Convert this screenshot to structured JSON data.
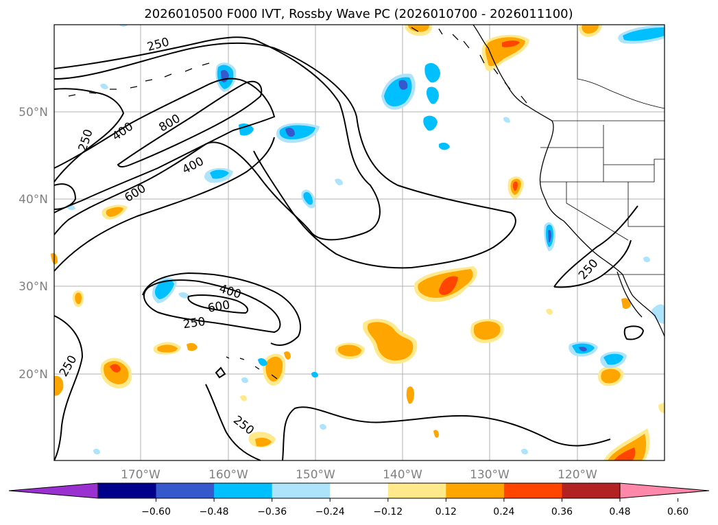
{
  "title": "2026010500 F000 IVT, Rossby Wave PC (2026010700 - 2026011100)",
  "axes": {
    "lat_labels": [
      "50°N",
      "40°N",
      "30°N",
      "20°N"
    ],
    "lon_labels": [
      "170°W",
      "160°W",
      "150°W",
      "140°W",
      "130°W",
      "120°W"
    ]
  },
  "contour_labels": [
    "250",
    "250",
    "400",
    "800",
    "600",
    "400",
    "400",
    "600",
    "250",
    "250",
    "250",
    "250"
  ],
  "colorbar": {
    "ticks": [
      "−0.60",
      "−0.48",
      "−0.36",
      "−0.24",
      "−0.12",
      "0.12",
      "0.24",
      "0.36",
      "0.48",
      "0.60"
    ],
    "colors": [
      "#9b30d0",
      "#00008b",
      "#3558cc",
      "#00bfff",
      "#ade3fb",
      "#ffffff",
      "#ffe98a",
      "#ffa500",
      "#ff4500",
      "#b22222",
      "#ff88aa"
    ]
  },
  "colors": {
    "neg_strong": "#3558cc",
    "neg_mid": "#00bfff",
    "neg_light": "#ade3fb",
    "pos_light": "#ffe98a",
    "pos_mid": "#ffa500",
    "pos_strong": "#ff4500"
  }
}
